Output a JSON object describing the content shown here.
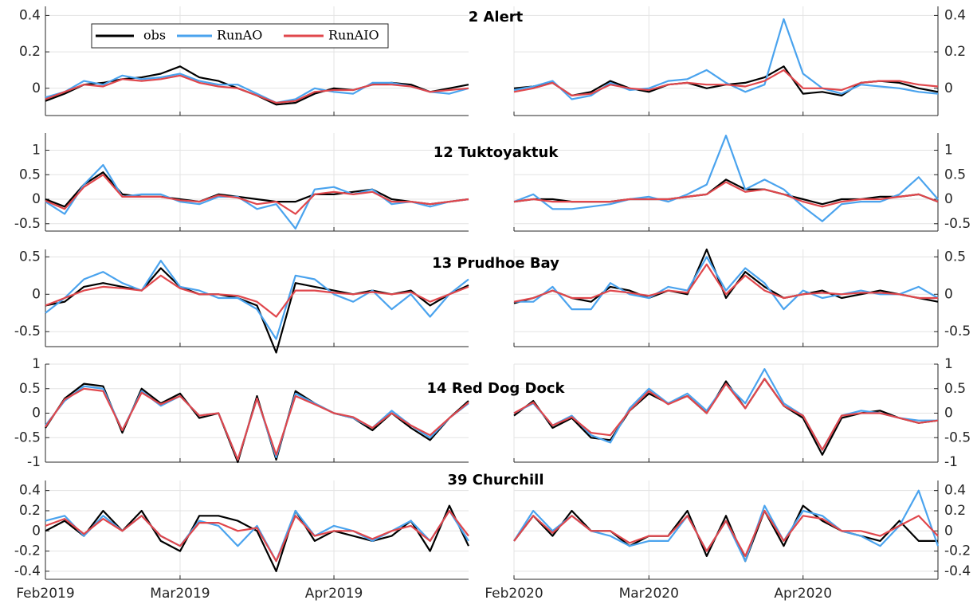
{
  "chart_data": {
    "type": "line",
    "legend": "upper left",
    "grid": true,
    "series": [
      {
        "name": "obs",
        "color": "#000000"
      },
      {
        "name": "RunAO",
        "color": "#4aa3ee"
      },
      {
        "name": "RunAIO",
        "color": "#e0474c"
      }
    ],
    "columns": [
      {
        "categories": [
          "Feb2019",
          null,
          null,
          null,
          null,
          null,
          null,
          "Mar2019",
          null,
          null,
          null,
          null,
          null,
          null,
          null,
          "Apr2019",
          null,
          null,
          null,
          null,
          null,
          null,
          null
        ]
      },
      {
        "categories": [
          "Feb2020",
          null,
          null,
          null,
          null,
          null,
          null,
          "Mar2020",
          null,
          null,
          null,
          null,
          null,
          null,
          null,
          "Apr2020",
          null,
          null,
          null,
          null,
          null,
          null,
          null
        ]
      }
    ],
    "rows": [
      {
        "title": "2 Alert",
        "ylim": [
          -0.15,
          0.45
        ],
        "yticks": [
          0,
          0.2,
          0.4
        ],
        "values": [
          [
            [
              -0.07,
              -0.03,
              0.02,
              0.03,
              0.05,
              0.06,
              0.08,
              0.12,
              0.06,
              0.04,
              0.0,
              -0.04,
              -0.09,
              -0.08,
              -0.03,
              0.0,
              -0.01,
              0.02,
              0.03,
              0.02,
              -0.02,
              0.0,
              0.02
            ],
            [
              -0.05,
              -0.02,
              0.04,
              0.02,
              0.07,
              0.05,
              0.06,
              0.08,
              0.04,
              0.02,
              0.02,
              -0.03,
              -0.08,
              -0.06,
              0.0,
              -0.02,
              -0.03,
              0.03,
              0.03,
              0.01,
              -0.02,
              -0.03,
              0.0
            ],
            [
              -0.06,
              -0.02,
              0.02,
              0.01,
              0.05,
              0.04,
              0.05,
              0.07,
              0.03,
              0.01,
              0.0,
              -0.04,
              -0.08,
              -0.07,
              -0.02,
              -0.01,
              -0.01,
              0.02,
              0.02,
              0.01,
              -0.02,
              -0.01,
              0.0
            ]
          ],
          [
            [
              0.0,
              0.01,
              0.03,
              -0.04,
              -0.02,
              0.04,
              0.0,
              -0.02,
              0.02,
              0.03,
              0.0,
              0.02,
              0.03,
              0.06,
              0.12,
              -0.03,
              -0.02,
              -0.04,
              0.03,
              0.04,
              0.03,
              0.0,
              -0.02
            ],
            [
              -0.01,
              0.01,
              0.04,
              -0.06,
              -0.04,
              0.03,
              -0.01,
              0.0,
              0.04,
              0.05,
              0.1,
              0.03,
              -0.02,
              0.02,
              0.38,
              0.08,
              0.0,
              -0.03,
              0.02,
              0.01,
              0.0,
              -0.02,
              -0.03
            ],
            [
              -0.02,
              0.0,
              0.03,
              -0.04,
              -0.03,
              0.02,
              0.0,
              -0.01,
              0.02,
              0.03,
              0.02,
              0.02,
              0.01,
              0.04,
              0.1,
              0.0,
              0.0,
              -0.01,
              0.03,
              0.04,
              0.04,
              0.02,
              0.01
            ]
          ]
        ]
      },
      {
        "title": "12 Tuktoyaktuk",
        "ylim": [
          -0.65,
          1.35
        ],
        "yticks": [
          -0.5,
          0,
          0.5,
          1
        ],
        "values": [
          [
            [
              0,
              -0.15,
              0.3,
              0.55,
              0.1,
              0.05,
              0.05,
              0.0,
              -0.05,
              0.1,
              0.05,
              0.0,
              -0.05,
              -0.05,
              0.1,
              0.1,
              0.15,
              0.2,
              0.0,
              -0.05,
              -0.1,
              -0.05,
              0.0
            ],
            [
              -0.05,
              -0.3,
              0.3,
              0.7,
              0.05,
              0.1,
              0.1,
              -0.05,
              -0.1,
              0.05,
              0.05,
              -0.2,
              -0.1,
              -0.6,
              0.2,
              0.25,
              0.1,
              0.2,
              -0.1,
              -0.05,
              -0.15,
              -0.05,
              0.0
            ],
            [
              -0.03,
              -0.2,
              0.25,
              0.5,
              0.05,
              0.05,
              0.05,
              -0.02,
              -0.05,
              0.08,
              0.03,
              -0.1,
              -0.05,
              -0.3,
              0.1,
              0.15,
              0.1,
              0.15,
              -0.05,
              -0.05,
              -0.1,
              -0.05,
              0.0
            ]
          ],
          [
            [
              -0.05,
              0.0,
              0.0,
              -0.05,
              -0.05,
              -0.05,
              0.0,
              0.0,
              0.0,
              0.05,
              0.1,
              0.4,
              0.2,
              0.2,
              0.1,
              0.0,
              -0.1,
              0.0,
              0.0,
              0.05,
              0.05,
              0.1,
              -0.05
            ],
            [
              -0.05,
              0.1,
              -0.2,
              -0.2,
              -0.15,
              -0.1,
              0.0,
              0.05,
              -0.05,
              0.1,
              0.3,
              1.3,
              0.2,
              0.4,
              0.2,
              -0.15,
              -0.45,
              -0.1,
              -0.05,
              -0.05,
              0.1,
              0.45,
              0.0
            ],
            [
              -0.05,
              0.0,
              -0.05,
              -0.05,
              -0.05,
              -0.05,
              0.0,
              0.0,
              0.0,
              0.05,
              0.1,
              0.35,
              0.15,
              0.2,
              0.1,
              -0.05,
              -0.15,
              -0.05,
              0.0,
              0.0,
              0.05,
              0.1,
              -0.05
            ]
          ]
        ]
      },
      {
        "title": "13 Prudhoe Bay",
        "ylim": [
          -0.7,
          0.6
        ],
        "yticks": [
          -0.5,
          0,
          0.5
        ],
        "values": [
          [
            [
              -0.15,
              -0.1,
              0.1,
              0.15,
              0.1,
              0.05,
              0.35,
              0.1,
              0.0,
              0.0,
              -0.05,
              -0.15,
              -0.78,
              0.15,
              0.1,
              0.05,
              0.0,
              0.05,
              0.0,
              0.05,
              -0.15,
              0.0,
              0.12
            ],
            [
              -0.25,
              -0.05,
              0.2,
              0.3,
              0.15,
              0.05,
              0.45,
              0.1,
              0.05,
              -0.05,
              -0.05,
              -0.2,
              -0.6,
              0.25,
              0.2,
              0.0,
              -0.1,
              0.05,
              -0.2,
              0.0,
              -0.3,
              0.0,
              0.2
            ],
            [
              -0.15,
              -0.05,
              0.05,
              0.1,
              0.08,
              0.05,
              0.25,
              0.08,
              0.0,
              0.0,
              -0.02,
              -0.1,
              -0.3,
              0.05,
              0.05,
              0.02,
              0.0,
              0.03,
              0.0,
              0.03,
              -0.1,
              0.0,
              0.1
            ]
          ],
          [
            [
              -0.12,
              -0.05,
              0.05,
              -0.05,
              -0.1,
              0.1,
              0.05,
              -0.05,
              0.05,
              0.0,
              0.6,
              -0.05,
              0.3,
              0.1,
              -0.05,
              0.0,
              0.05,
              -0.05,
              0.0,
              0.05,
              0.0,
              -0.05,
              -0.1
            ],
            [
              -0.1,
              -0.1,
              0.1,
              -0.2,
              -0.2,
              0.15,
              0.0,
              -0.05,
              0.1,
              0.05,
              0.5,
              0.05,
              0.35,
              0.15,
              -0.2,
              0.05,
              -0.05,
              0.0,
              0.05,
              0.0,
              0.0,
              0.1,
              -0.05
            ],
            [
              -0.1,
              -0.05,
              0.05,
              -0.05,
              -0.05,
              0.05,
              0.02,
              -0.02,
              0.05,
              0.02,
              0.4,
              0.0,
              0.25,
              0.05,
              -0.05,
              0.0,
              0.02,
              0.0,
              0.02,
              0.02,
              0.0,
              -0.05,
              -0.05
            ]
          ]
        ]
      },
      {
        "title": "14 Red Dog Dock",
        "ylim": [
          -1,
          1
        ],
        "yticks": [
          -1,
          -0.5,
          0,
          0.5,
          1
        ],
        "values": [
          [
            [
              -0.3,
              0.3,
              0.6,
              0.55,
              -0.4,
              0.5,
              0.2,
              0.4,
              -0.1,
              0.0,
              -1.0,
              0.35,
              -0.95,
              0.45,
              0.2,
              0.0,
              -0.1,
              -0.35,
              0.0,
              -0.3,
              -0.55,
              -0.1,
              0.25
            ],
            [
              -0.25,
              0.25,
              0.55,
              0.5,
              -0.35,
              0.45,
              0.15,
              0.35,
              -0.05,
              0.0,
              -0.95,
              0.3,
              -0.9,
              0.4,
              0.2,
              0.0,
              -0.1,
              -0.3,
              0.05,
              -0.25,
              -0.5,
              -0.1,
              0.2
            ],
            [
              -0.28,
              0.28,
              0.5,
              0.45,
              -0.35,
              0.42,
              0.18,
              0.35,
              -0.05,
              0.0,
              -0.95,
              0.3,
              -0.85,
              0.35,
              0.18,
              0.0,
              -0.08,
              -0.3,
              0.0,
              -0.25,
              -0.45,
              -0.1,
              0.22
            ]
          ],
          [
            [
              -0.05,
              0.25,
              -0.3,
              -0.1,
              -0.5,
              -0.55,
              0.05,
              0.4,
              0.2,
              0.35,
              0.0,
              0.65,
              0.1,
              0.7,
              0.15,
              -0.1,
              -0.85,
              -0.1,
              0.0,
              0.05,
              -0.1,
              -0.2,
              -0.15
            ],
            [
              0.0,
              0.2,
              -0.25,
              -0.05,
              -0.45,
              -0.6,
              0.1,
              0.5,
              0.2,
              0.4,
              0.05,
              0.6,
              0.2,
              0.9,
              0.2,
              -0.05,
              -0.75,
              -0.05,
              0.05,
              0.0,
              -0.1,
              -0.15,
              -0.15
            ],
            [
              0.0,
              0.22,
              -0.25,
              -0.08,
              -0.4,
              -0.45,
              0.05,
              0.45,
              0.18,
              0.35,
              0.0,
              0.6,
              0.1,
              0.7,
              0.15,
              -0.05,
              -0.75,
              -0.05,
              0.0,
              0.0,
              -0.1,
              -0.2,
              -0.15
            ]
          ]
        ]
      },
      {
        "title": "39 Churchill",
        "ylim": [
          -0.48,
          0.5
        ],
        "yticks": [
          -0.4,
          -0.2,
          0,
          0.2,
          0.4
        ],
        "values": [
          [
            [
              0.0,
              0.1,
              -0.05,
              0.2,
              0.0,
              0.2,
              -0.1,
              -0.2,
              0.15,
              0.15,
              0.1,
              0.0,
              -0.4,
              0.2,
              -0.1,
              0.0,
              -0.05,
              -0.1,
              -0.05,
              0.1,
              -0.2,
              0.25,
              -0.15
            ],
            [
              0.1,
              0.15,
              -0.05,
              0.15,
              0.0,
              0.15,
              -0.05,
              -0.15,
              0.1,
              0.05,
              -0.15,
              0.05,
              -0.3,
              0.2,
              -0.05,
              0.05,
              0.0,
              -0.1,
              0.0,
              0.1,
              -0.1,
              0.2,
              -0.1
            ],
            [
              0.05,
              0.12,
              -0.03,
              0.12,
              0.0,
              0.15,
              -0.05,
              -0.15,
              0.08,
              0.08,
              0.0,
              0.03,
              -0.3,
              0.15,
              -0.05,
              0.0,
              0.0,
              -0.08,
              0.0,
              0.05,
              -0.1,
              0.2,
              -0.05
            ]
          ],
          [
            [
              -0.1,
              0.15,
              -0.05,
              0.2,
              0.0,
              0.0,
              -0.15,
              -0.05,
              -0.05,
              0.2,
              -0.25,
              0.15,
              -0.3,
              0.2,
              -0.15,
              0.25,
              0.1,
              0.0,
              -0.05,
              -0.1,
              0.1,
              -0.1,
              -0.1
            ],
            [
              -0.1,
              0.2,
              0.0,
              0.15,
              0.0,
              -0.05,
              -0.15,
              -0.1,
              -0.1,
              0.15,
              -0.2,
              0.1,
              -0.3,
              0.25,
              -0.1,
              0.2,
              0.15,
              0.0,
              -0.05,
              -0.15,
              0.05,
              0.4,
              -0.15
            ],
            [
              -0.1,
              0.15,
              -0.02,
              0.15,
              0.0,
              0.0,
              -0.12,
              -0.05,
              -0.05,
              0.15,
              -0.2,
              0.1,
              -0.25,
              0.2,
              -0.1,
              0.15,
              0.12,
              0.0,
              0.0,
              -0.05,
              0.05,
              0.15,
              -0.05
            ]
          ]
        ]
      }
    ]
  }
}
